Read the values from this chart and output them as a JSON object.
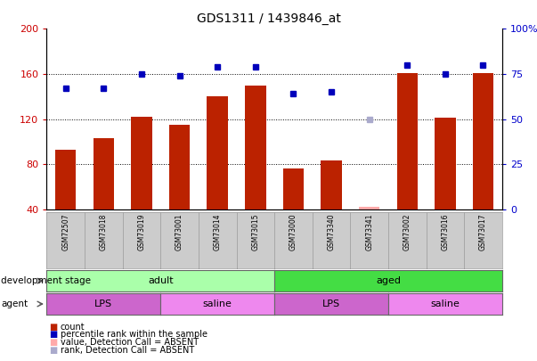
{
  "title": "GDS1311 / 1439846_at",
  "samples": [
    "GSM72507",
    "GSM73018",
    "GSM73019",
    "GSM73001",
    "GSM73014",
    "GSM73015",
    "GSM73000",
    "GSM73340",
    "GSM73341",
    "GSM73002",
    "GSM73016",
    "GSM73017"
  ],
  "bar_values": [
    93,
    103,
    122,
    115,
    140,
    150,
    76,
    83,
    42,
    161,
    121,
    161
  ],
  "bar_absent": [
    false,
    false,
    false,
    false,
    false,
    false,
    false,
    false,
    true,
    false,
    false,
    false
  ],
  "dot_values": [
    67,
    67,
    75,
    74,
    79,
    79,
    64,
    65,
    50,
    80,
    75,
    80
  ],
  "dot_absent": [
    false,
    false,
    false,
    false,
    false,
    false,
    false,
    false,
    true,
    false,
    false,
    false
  ],
  "bar_color": "#bb2200",
  "bar_absent_color": "#ffaaaa",
  "dot_color": "#0000bb",
  "dot_absent_color": "#aaaacc",
  "ylim_left": [
    40,
    200
  ],
  "ylim_right": [
    0,
    100
  ],
  "yticks_left": [
    40,
    80,
    120,
    160,
    200
  ],
  "yticks_right": [
    0,
    25,
    50,
    75,
    100
  ],
  "yticklabels_right": [
    "0",
    "25",
    "50",
    "75",
    "100%"
  ],
  "groups": [
    {
      "label": "adult",
      "start": 0,
      "end": 6,
      "color": "#aaffaa"
    },
    {
      "label": "aged",
      "start": 6,
      "end": 12,
      "color": "#44dd44"
    }
  ],
  "agents": [
    {
      "label": "LPS",
      "start": 0,
      "end": 3,
      "color": "#cc66cc"
    },
    {
      "label": "saline",
      "start": 3,
      "end": 6,
      "color": "#ee88ee"
    },
    {
      "label": "LPS",
      "start": 6,
      "end": 9,
      "color": "#cc66cc"
    },
    {
      "label": "saline",
      "start": 9,
      "end": 12,
      "color": "#ee88ee"
    }
  ],
  "dev_stage_label": "development stage",
  "agent_label": "agent",
  "bg_color": "#cccccc",
  "plot_bg": "#ffffff",
  "legend_items": [
    {
      "label": "count",
      "color": "#bb2200"
    },
    {
      "label": "percentile rank within the sample",
      "color": "#0000bb"
    },
    {
      "label": "value, Detection Call = ABSENT",
      "color": "#ffaaaa"
    },
    {
      "label": "rank, Detection Call = ABSENT",
      "color": "#aaaacc"
    }
  ]
}
